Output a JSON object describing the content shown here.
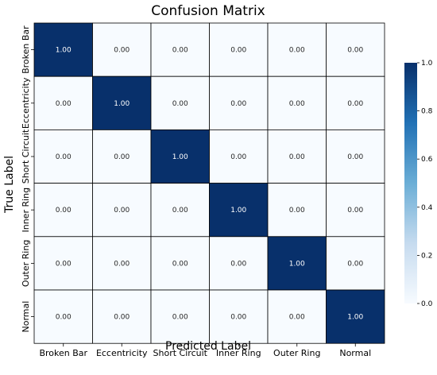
{
  "chart_data": {
    "type": "heatmap",
    "title": "Confusion Matrix",
    "xlabel": "Predicted Label",
    "ylabel": "True Label",
    "x_categories": [
      "Broken Bar",
      "Eccentricity",
      "Short Circuit",
      "Inner Ring",
      "Outer Ring",
      "Normal"
    ],
    "y_categories": [
      "Broken Bar",
      "Eccentricity",
      "Short Circuit",
      "Inner Ring",
      "Outer Ring",
      "Normal"
    ],
    "values": [
      [
        1.0,
        0.0,
        0.0,
        0.0,
        0.0,
        0.0
      ],
      [
        0.0,
        1.0,
        0.0,
        0.0,
        0.0,
        0.0
      ],
      [
        0.0,
        0.0,
        1.0,
        0.0,
        0.0,
        0.0
      ],
      [
        0.0,
        0.0,
        0.0,
        1.0,
        0.0,
        0.0
      ],
      [
        0.0,
        0.0,
        0.0,
        0.0,
        1.0,
        0.0
      ],
      [
        0.0,
        0.0,
        0.0,
        0.0,
        0.0,
        1.0
      ]
    ],
    "value_format": "0.00",
    "colorbar": {
      "range": [
        0.0,
        1.0
      ],
      "ticks": [
        "0.0",
        "0.2",
        "0.4",
        "0.6",
        "0.8",
        "1.0"
      ],
      "colors": [
        "#f7fbff",
        "#c6dbef",
        "#6baed6",
        "#2171b5",
        "#08306b"
      ]
    },
    "cell_border_color": "#000000"
  }
}
